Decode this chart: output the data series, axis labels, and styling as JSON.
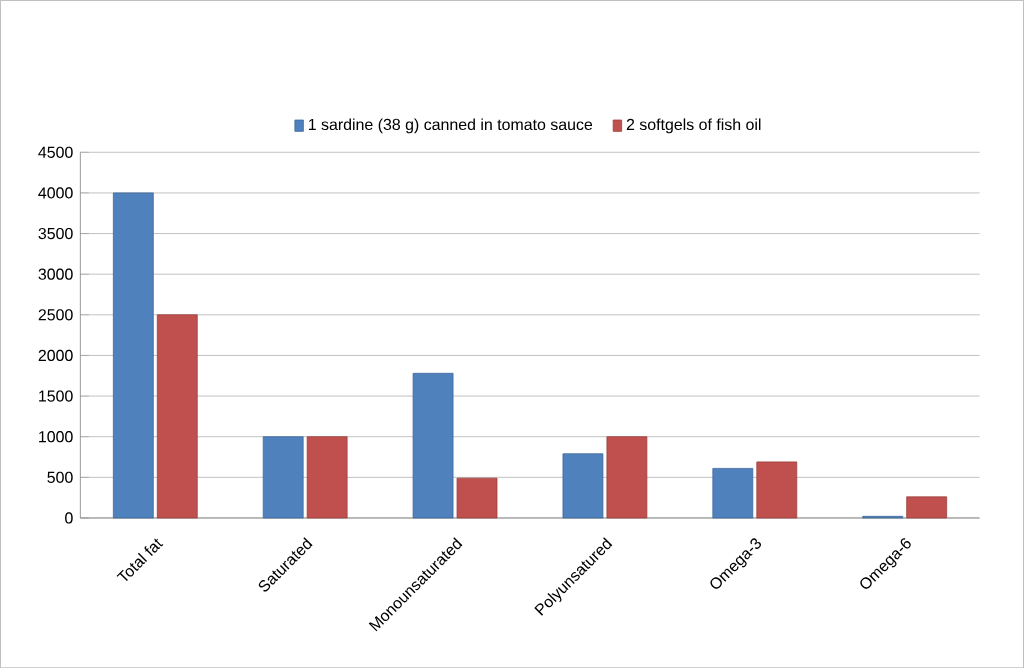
{
  "chart_data": {
    "type": "bar",
    "categories": [
      "Total fat",
      "Saturated",
      "Monounsaturated",
      "Polyunsatured",
      "Omega-3",
      "Omega-6"
    ],
    "series": [
      {
        "name": "1 sardine (38 g) canned in tomato sauce",
        "color": "#4f81bd",
        "values": [
          4000,
          1000,
          1780,
          790,
          610,
          20
        ]
      },
      {
        "name": "2 softgels of fish oil",
        "color": "#c0504d",
        "values": [
          2500,
          1000,
          490,
          1000,
          690,
          260
        ]
      }
    ],
    "ylim": [
      0,
      4500
    ],
    "yticks": [
      0,
      500,
      1000,
      1500,
      2000,
      2500,
      3000,
      3500,
      4000,
      4500
    ],
    "grid": "y",
    "legend": "top"
  }
}
